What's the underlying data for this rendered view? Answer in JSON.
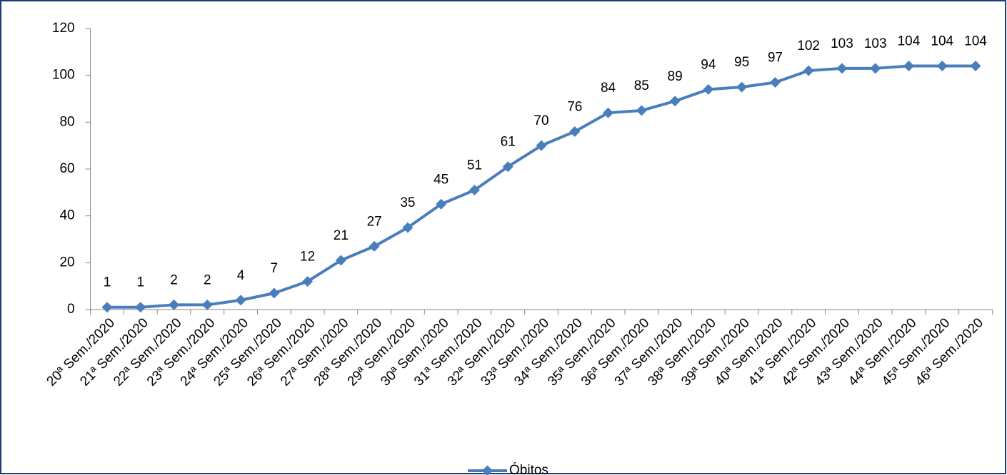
{
  "chart_data": {
    "type": "line",
    "categories": [
      "20ª Sem./2020",
      "21ª Sem./2020",
      "22ª Sem./2020",
      "23ª Sem./2020",
      "24ª Sem./2020",
      "25ª Sem./2020",
      "26ª Sem./2020",
      "27ª Sem./2020",
      "28ª Sem./2020",
      "29ª Sem./2020",
      "30ª Sem./2020",
      "31ª Sem./2020",
      "32ª Sem./2020",
      "33ª Sem./2020",
      "34ª Sem./2020",
      "35ª Sem./2020",
      "36ª Sem./2020",
      "37ª Sem./2020",
      "38ª Sem./2020",
      "39ª Sem./2020",
      "40ª Sem./2020",
      "41ª Sem./2020",
      "42ª Sem./2020",
      "43ª Sem./2020",
      "44ª Sem./2020",
      "45ª Sem./2020",
      "46ª Sem./2020"
    ],
    "series": [
      {
        "name": "Óbitos",
        "color": "#4a7ebb",
        "values": [
          1,
          1,
          2,
          2,
          4,
          7,
          12,
          21,
          27,
          35,
          45,
          51,
          61,
          70,
          76,
          84,
          85,
          89,
          94,
          95,
          97,
          102,
          103,
          103,
          104,
          104,
          104
        ]
      }
    ],
    "ylim": [
      0,
      120
    ],
    "yticks": [
      0,
      20,
      40,
      60,
      80,
      100,
      120
    ],
    "grid": false,
    "legend": "bottom"
  }
}
